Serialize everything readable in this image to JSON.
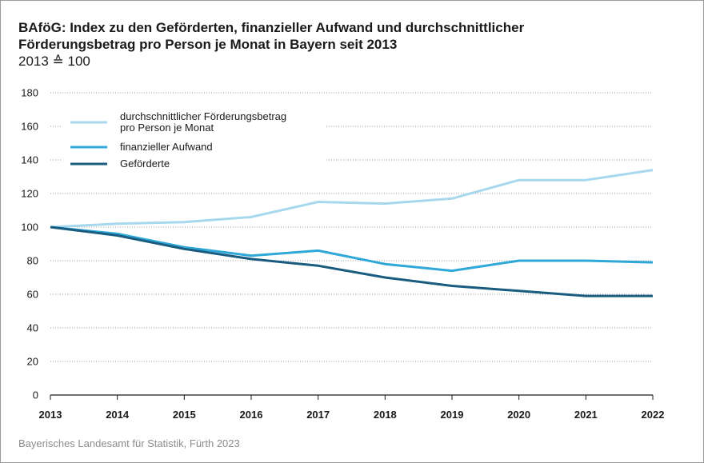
{
  "header": {
    "title_line1": "BAföG: Index zu den Geförderten, finanzieller Aufwand und durchschnittlicher",
    "title_line2": "Förderungsbetrag pro Person je Monat in Bayern seit 2013",
    "subtitle": "2013 ≙ 100"
  },
  "footer": {
    "source": "Bayerisches Landesamt für Statistik, Fürth 2023"
  },
  "chart_data": {
    "type": "line",
    "title": "BAföG: Index zu den Geförderten, finanzieller Aufwand und durchschnittlicher Förderungsbetrag pro Person je Monat in Bayern seit 2013",
    "subtitle": "2013 ≙ 100",
    "x": [
      "2013",
      "2014",
      "2015",
      "2016",
      "2017",
      "2018",
      "2019",
      "2020",
      "2021",
      "2022"
    ],
    "ylim": [
      0,
      180
    ],
    "yticks": [
      0,
      20,
      40,
      60,
      80,
      100,
      120,
      140,
      160,
      180
    ],
    "grid": "horizontal",
    "legend": "top-left",
    "series": [
      {
        "name_line1": "durchschnittlicher Förderungsbetrag",
        "name_line2": "pro Person je Monat",
        "color": "#a8d8ee",
        "values": [
          100,
          102,
          103,
          106,
          115,
          114,
          117,
          128,
          128,
          134
        ]
      },
      {
        "name_line1": "finanzieller Aufwand",
        "name_line2": "",
        "color": "#2fa8d8",
        "values": [
          100,
          96,
          88,
          83,
          86,
          78,
          74,
          80,
          80,
          79
        ]
      },
      {
        "name_line1": "Geförderte",
        "name_line2": "",
        "color": "#1a5c80",
        "values": [
          100,
          95,
          87,
          81,
          77,
          70,
          65,
          62,
          59,
          59
        ]
      }
    ]
  }
}
